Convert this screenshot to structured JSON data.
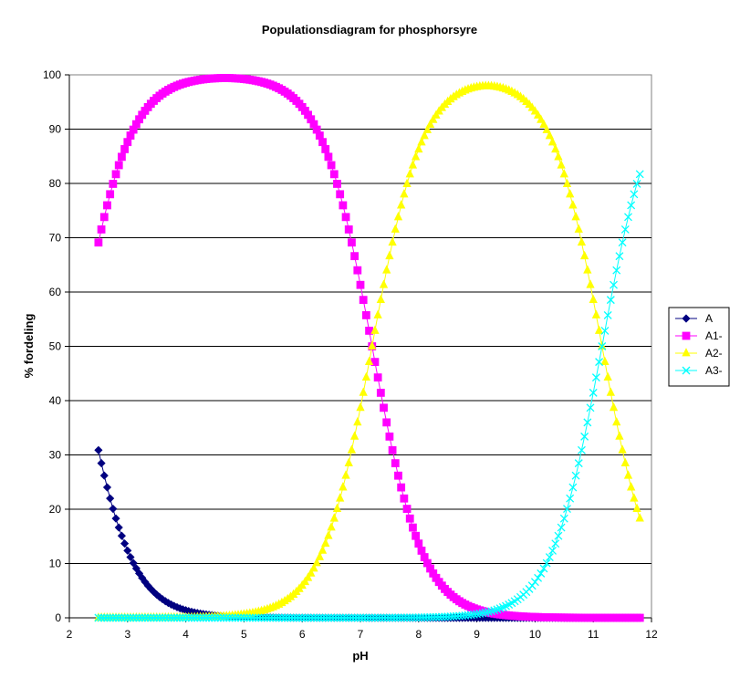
{
  "chart_data": {
    "type": "scatter",
    "title": "Populationsdiagram for phosphorsyre",
    "xlabel": "pH",
    "ylabel": "% fordeling",
    "xlim": [
      2,
      12
    ],
    "ylim": [
      0,
      100
    ],
    "xticks": [
      2,
      3,
      4,
      5,
      6,
      7,
      8,
      9,
      10,
      11,
      12
    ],
    "yticks": [
      0,
      10,
      20,
      30,
      40,
      50,
      60,
      70,
      80,
      90,
      100
    ],
    "grid": "horizontal",
    "legend_position": "right",
    "pka": [
      2.15,
      7.2,
      11.15
    ],
    "x_start": 2.5,
    "x_end": 11.8,
    "series": [
      {
        "name": "A",
        "marker": "diamond",
        "color": "#000080"
      },
      {
        "name": "A1-",
        "marker": "square",
        "color": "#FF00FF"
      },
      {
        "name": "A2-",
        "marker": "triangle",
        "color": "#FFFF00"
      },
      {
        "name": "A3-",
        "marker": "x",
        "color": "#00FFFF"
      }
    ]
  }
}
